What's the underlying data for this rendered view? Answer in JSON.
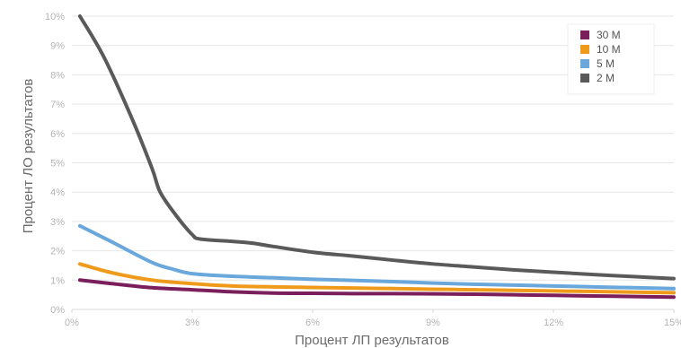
{
  "chart_data": {
    "type": "line",
    "xlabel": "Процент ЛП результатов",
    "ylabel": "Процент ЛО результатов",
    "xlim": [
      0,
      15
    ],
    "ylim": [
      0,
      10
    ],
    "x_ticks": [
      "0%",
      "3%",
      "6%",
      "9%",
      "12%",
      "15%"
    ],
    "y_ticks": [
      "0%",
      "1%",
      "2%",
      "3%",
      "4%",
      "5%",
      "6%",
      "7%",
      "8%",
      "9%",
      "10%"
    ],
    "legend_position": "top-right",
    "grid": true,
    "series": [
      {
        "name": "30 M",
        "color": "#7a1f5c",
        "points": [
          [
            0.2,
            1.0
          ],
          [
            1.0,
            0.88
          ],
          [
            2.0,
            0.74
          ],
          [
            3.0,
            0.67
          ],
          [
            4.0,
            0.6
          ],
          [
            5.0,
            0.56
          ],
          [
            6.0,
            0.55
          ],
          [
            7.0,
            0.54
          ],
          [
            8.0,
            0.54
          ],
          [
            9.0,
            0.53
          ],
          [
            10.0,
            0.52
          ],
          [
            11.0,
            0.5
          ],
          [
            12.0,
            0.48
          ],
          [
            13.0,
            0.46
          ],
          [
            14.0,
            0.44
          ],
          [
            15.0,
            0.42
          ]
        ]
      },
      {
        "name": "10 M",
        "color": "#f09a1c",
        "points": [
          [
            0.2,
            1.55
          ],
          [
            1.0,
            1.25
          ],
          [
            2.0,
            1.0
          ],
          [
            3.0,
            0.88
          ],
          [
            4.0,
            0.8
          ],
          [
            5.0,
            0.77
          ],
          [
            6.0,
            0.75
          ],
          [
            7.0,
            0.73
          ],
          [
            8.0,
            0.71
          ],
          [
            9.0,
            0.69
          ],
          [
            10.0,
            0.67
          ],
          [
            11.0,
            0.65
          ],
          [
            12.0,
            0.63
          ],
          [
            13.0,
            0.61
          ],
          [
            14.0,
            0.59
          ],
          [
            15.0,
            0.57
          ]
        ]
      },
      {
        "name": "5 M",
        "color": "#6aa8dc",
        "points": [
          [
            0.2,
            2.85
          ],
          [
            1.0,
            2.3
          ],
          [
            2.0,
            1.6
          ],
          [
            2.5,
            1.38
          ],
          [
            3.0,
            1.22
          ],
          [
            4.0,
            1.13
          ],
          [
            5.0,
            1.08
          ],
          [
            6.0,
            1.03
          ],
          [
            7.0,
            0.99
          ],
          [
            8.0,
            0.95
          ],
          [
            9.0,
            0.9
          ],
          [
            10.0,
            0.86
          ],
          [
            11.0,
            0.83
          ],
          [
            12.0,
            0.8
          ],
          [
            13.0,
            0.77
          ],
          [
            14.0,
            0.74
          ],
          [
            15.0,
            0.71
          ]
        ]
      },
      {
        "name": "2 M",
        "color": "#5a5a5a",
        "points": [
          [
            0.2,
            10.0
          ],
          [
            0.8,
            8.6
          ],
          [
            1.5,
            6.5
          ],
          [
            2.0,
            4.8
          ],
          [
            2.2,
            4.0
          ],
          [
            2.6,
            3.2
          ],
          [
            3.0,
            2.55
          ],
          [
            3.2,
            2.4
          ],
          [
            4.0,
            2.32
          ],
          [
            4.5,
            2.26
          ],
          [
            5.0,
            2.15
          ],
          [
            6.0,
            1.95
          ],
          [
            7.0,
            1.82
          ],
          [
            8.0,
            1.68
          ],
          [
            9.0,
            1.55
          ],
          [
            10.0,
            1.45
          ],
          [
            11.0,
            1.35
          ],
          [
            12.0,
            1.27
          ],
          [
            13.0,
            1.19
          ],
          [
            14.0,
            1.12
          ],
          [
            15.0,
            1.05
          ]
        ]
      }
    ]
  }
}
